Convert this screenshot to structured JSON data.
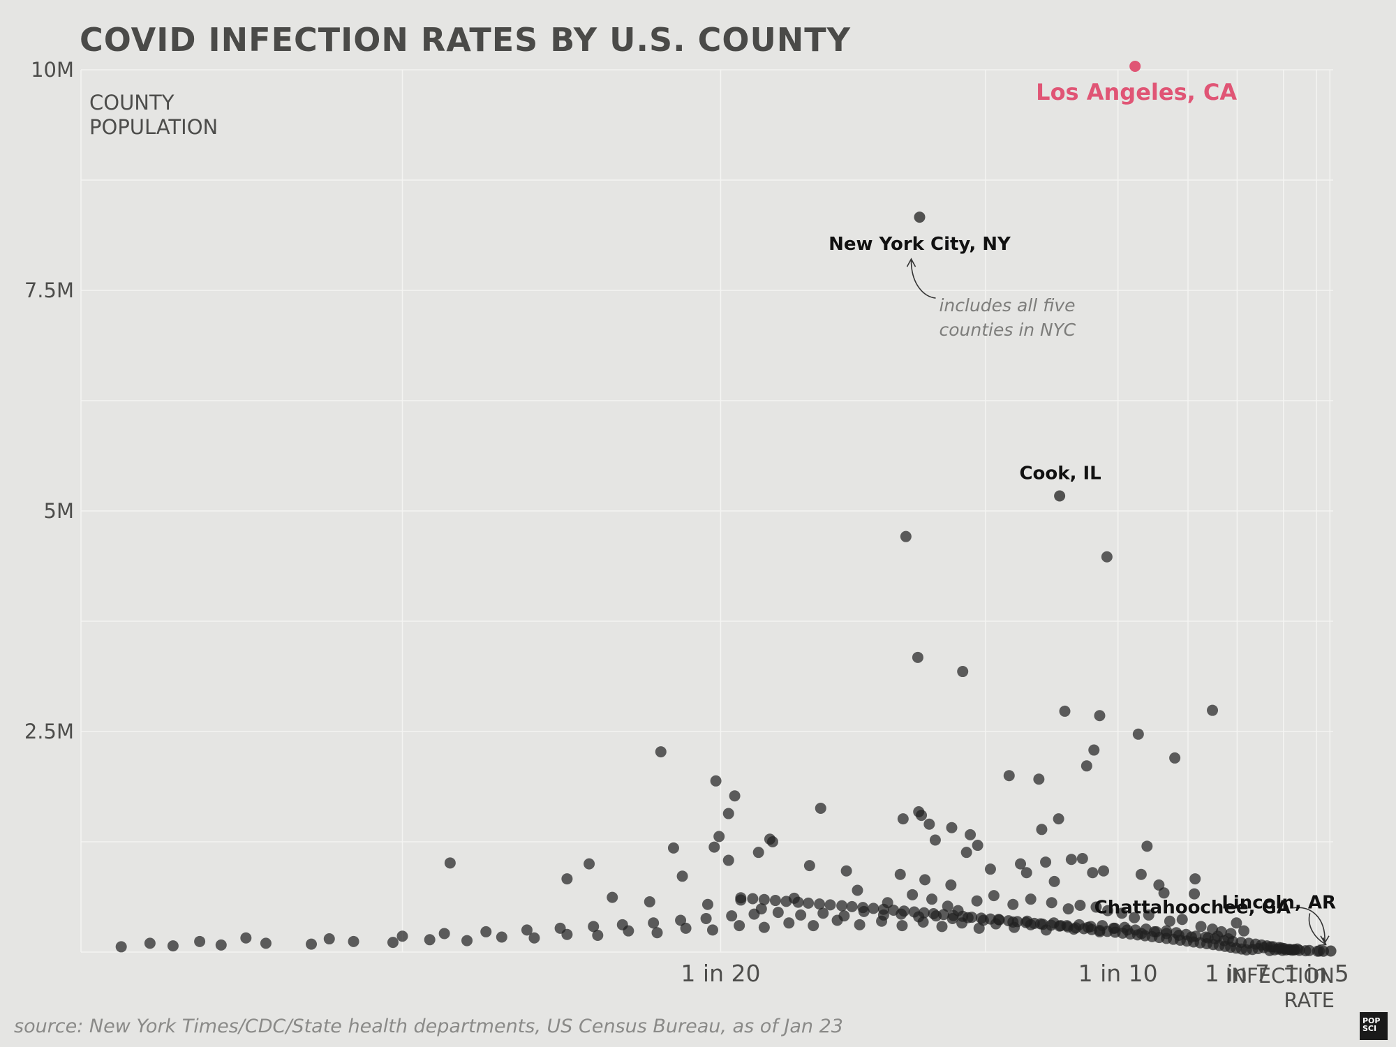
{
  "chart_data": {
    "type": "scatter",
    "title": "COVID INFECTION RATES BY U.S. COUNTY",
    "ylabel_lines": [
      "COUNTY",
      "POPULATION"
    ],
    "xlabel_lines": [
      "INFECTION",
      "RATE"
    ],
    "source": "source: New York Times/CDC/State health departments, US Census Bureau, as of Jan 23",
    "logo_lines": [
      "POP",
      "SCI"
    ],
    "ylim": [
      0,
      10000000
    ],
    "xlim": [
      0.0277,
      0.2182
    ],
    "x_scale": "reciprocal",
    "grid": true,
    "y_ticks": [
      {
        "value": 10000000,
        "label": "10M"
      },
      {
        "value": 7500000,
        "label": "7.5M"
      },
      {
        "value": 5000000,
        "label": "5M"
      },
      {
        "value": 2500000,
        "label": "2.5M"
      }
    ],
    "y_minor_ticks": [
      1250000,
      3750000,
      6250000,
      8750000
    ],
    "x_ticks": [
      {
        "value": 0.05,
        "label": "1 in 20"
      },
      {
        "value": 0.1,
        "label": "1 in 10"
      },
      {
        "value": 0.142857,
        "label": "1 in 7"
      },
      {
        "value": 0.2,
        "label": "1 in 5"
      }
    ],
    "x_minor_ticks": [
      0.0357,
      0.075,
      0.1214,
      0.1714,
      0.2143
    ],
    "colors": {
      "point": "#1f1f1f",
      "highlight": "#e05575",
      "grid": "#f4f4f2",
      "text": "#4d4d4b",
      "annotation": "#7d7d7b"
    },
    "highlighted": [
      {
        "name": "Los Angeles, CA",
        "x": 0.1045,
        "y": 10040000,
        "color": "#e05575"
      }
    ],
    "labeled": [
      {
        "name": "New York City, NY",
        "x": 0.0667,
        "y": 8330000
      },
      {
        "name": "Cook, IL",
        "x": 0.0872,
        "y": 5170000
      },
      {
        "name": "Chattahoochee, GA",
        "x": 0.2071,
        "y": 10000
      },
      {
        "name": "Lincoln, AR",
        "x": 0.2154,
        "y": 12000
      }
    ],
    "annotations": [
      {
        "for": "New York City, NY",
        "lines": [
          "includes all five",
          "counties in NYC"
        ]
      }
    ],
    "points": [
      [
        0.0652,
        4710000
      ],
      [
        0.0973,
        4480000
      ],
      [
        0.0665,
        3340000
      ],
      [
        0.0719,
        3180000
      ],
      [
        0.0882,
        2730000
      ],
      [
        0.0956,
        2680000
      ],
      [
        0.1054,
        2470000
      ],
      [
        0.1312,
        2740000
      ],
      [
        0.1167,
        2200000
      ],
      [
        0.0943,
        2290000
      ],
      [
        0.0927,
        2110000
      ],
      [
        0.0785,
        2000000
      ],
      [
        0.0834,
        1960000
      ],
      [
        0.0465,
        2270000
      ],
      [
        0.0497,
        1940000
      ],
      [
        0.0509,
        1770000
      ],
      [
        0.0505,
        1570000
      ],
      [
        0.0572,
        1630000
      ],
      [
        0.0535,
        1250000
      ],
      [
        0.0499,
        1310000
      ],
      [
        0.0533,
        1280000
      ],
      [
        0.0666,
        1590000
      ],
      [
        0.0669,
        1550000
      ],
      [
        0.0649,
        1510000
      ],
      [
        0.0678,
        1450000
      ],
      [
        0.0705,
        1410000
      ],
      [
        0.0729,
        1330000
      ],
      [
        0.0839,
        1390000
      ],
      [
        0.087,
        1510000
      ],
      [
        0.1079,
        1200000
      ],
      [
        0.0739,
        1210000
      ],
      [
        0.0685,
        1270000
      ],
      [
        0.0525,
        1130000
      ],
      [
        0.0496,
        1190000
      ],
      [
        0.0472,
        1180000
      ],
      [
        0.0429,
        1000000
      ],
      [
        0.0477,
        860000
      ],
      [
        0.0505,
        1040000
      ],
      [
        0.0563,
        980000
      ],
      [
        0.0594,
        920000
      ],
      [
        0.0646,
        880000
      ],
      [
        0.0673,
        820000
      ],
      [
        0.0704,
        760000
      ],
      [
        0.0724,
        1130000
      ],
      [
        0.0757,
        940000
      ],
      [
        0.0803,
        1000000
      ],
      [
        0.0813,
        900000
      ],
      [
        0.0846,
        1020000
      ],
      [
        0.0862,
        800000
      ],
      [
        0.0895,
        1050000
      ],
      [
        0.0918,
        1060000
      ],
      [
        0.094,
        900000
      ],
      [
        0.0965,
        920000
      ],
      [
        0.1062,
        880000
      ],
      [
        0.1131,
        670000
      ],
      [
        0.1115,
        760000
      ],
      [
        0.1238,
        660000
      ],
      [
        0.1241,
        830000
      ],
      [
        0.0373,
        1010000
      ],
      [
        0.0419,
        830000
      ],
      [
        0.044,
        620000
      ],
      [
        0.0459,
        570000
      ],
      [
        0.0492,
        540000
      ],
      [
        0.0513,
        590000
      ],
      [
        0.0527,
        490000
      ],
      [
        0.0551,
        610000
      ],
      [
        0.0604,
        700000
      ],
      [
        0.0633,
        560000
      ],
      [
        0.0659,
        650000
      ],
      [
        0.0681,
        600000
      ],
      [
        0.07,
        520000
      ],
      [
        0.0713,
        470000
      ],
      [
        0.0738,
        580000
      ],
      [
        0.0762,
        640000
      ],
      [
        0.0791,
        540000
      ],
      [
        0.082,
        600000
      ],
      [
        0.0857,
        560000
      ],
      [
        0.0889,
        490000
      ],
      [
        0.0913,
        530000
      ],
      [
        0.0948,
        510000
      ],
      [
        0.0975,
        470000
      ],
      [
        0.101,
        440000
      ],
      [
        0.1043,
        390000
      ],
      [
        0.1084,
        420000
      ],
      [
        0.115,
        350000
      ],
      [
        0.1193,
        370000
      ],
      [
        0.1264,
        290000
      ],
      [
        0.1312,
        260000
      ],
      [
        0.1425,
        330000
      ],
      [
        0.1464,
        240000
      ],
      [
        0.1352,
        230000
      ],
      [
        0.1397,
        210000
      ],
      [
        0.1385,
        150000
      ],
      [
        0.1335,
        180000
      ],
      [
        0.1293,
        160000
      ],
      [
        0.1227,
        170000
      ],
      [
        0.1181,
        190000
      ],
      [
        0.1139,
        210000
      ],
      [
        0.1101,
        230000
      ],
      [
        0.1063,
        210000
      ],
      [
        0.1024,
        250000
      ],
      [
        0.0992,
        270000
      ],
      [
        0.0956,
        230000
      ],
      [
        0.093,
        280000
      ],
      [
        0.09,
        260000
      ],
      [
        0.0874,
        300000
      ],
      [
        0.0847,
        250000
      ],
      [
        0.082,
        310000
      ],
      [
        0.0793,
        280000
      ],
      [
        0.0765,
        320000
      ],
      [
        0.0741,
        270000
      ],
      [
        0.0718,
        330000
      ],
      [
        0.0693,
        290000
      ],
      [
        0.0671,
        340000
      ],
      [
        0.0648,
        300000
      ],
      [
        0.0627,
        350000
      ],
      [
        0.0606,
        310000
      ],
      [
        0.0586,
        360000
      ],
      [
        0.0566,
        300000
      ],
      [
        0.0547,
        330000
      ],
      [
        0.0529,
        280000
      ],
      [
        0.0512,
        300000
      ],
      [
        0.0495,
        250000
      ],
      [
        0.0479,
        270000
      ],
      [
        0.0463,
        220000
      ],
      [
        0.0448,
        240000
      ],
      [
        0.0433,
        190000
      ],
      [
        0.0419,
        200000
      ],
      [
        0.0405,
        160000
      ],
      [
        0.0392,
        170000
      ],
      [
        0.0379,
        130000
      ],
      [
        0.0366,
        140000
      ],
      [
        0.0354,
        110000
      ],
      [
        0.0342,
        120000
      ],
      [
        0.033,
        90000
      ],
      [
        0.0318,
        100000
      ],
      [
        0.0307,
        80000
      ],
      [
        0.0296,
        70000
      ],
      [
        0.0285,
        60000
      ],
      [
        0.0291,
        100000
      ],
      [
        0.0302,
        120000
      ],
      [
        0.0313,
        160000
      ],
      [
        0.0335,
        150000
      ],
      [
        0.0357,
        180000
      ],
      [
        0.0371,
        210000
      ],
      [
        0.0386,
        230000
      ],
      [
        0.0402,
        250000
      ],
      [
        0.0416,
        270000
      ],
      [
        0.0431,
        290000
      ],
      [
        0.0445,
        310000
      ],
      [
        0.0461,
        330000
      ],
      [
        0.0476,
        360000
      ],
      [
        0.0491,
        380000
      ],
      [
        0.0507,
        410000
      ],
      [
        0.0522,
        430000
      ],
      [
        0.0539,
        450000
      ],
      [
        0.0556,
        420000
      ],
      [
        0.0574,
        440000
      ],
      [
        0.0592,
        410000
      ],
      [
        0.061,
        460000
      ],
      [
        0.0629,
        420000
      ],
      [
        0.0647,
        430000
      ],
      [
        0.0666,
        400000
      ],
      [
        0.0686,
        410000
      ],
      [
        0.0706,
        380000
      ],
      [
        0.0726,
        390000
      ],
      [
        0.0747,
        360000
      ],
      [
        0.0769,
        370000
      ],
      [
        0.0791,
        340000
      ],
      [
        0.0814,
        350000
      ],
      [
        0.0837,
        320000
      ],
      [
        0.0861,
        330000
      ],
      [
        0.0886,
        300000
      ],
      [
        0.0911,
        310000
      ],
      [
        0.0936,
        290000
      ],
      [
        0.0962,
        300000
      ],
      [
        0.0989,
        270000
      ],
      [
        0.1017,
        280000
      ],
      [
        0.1046,
        250000
      ],
      [
        0.1076,
        260000
      ],
      [
        0.1107,
        230000
      ],
      [
        0.1139,
        240000
      ],
      [
        0.1172,
        220000
      ],
      [
        0.1207,
        200000
      ],
      [
        0.1244,
        180000
      ],
      [
        0.1283,
        170000
      ],
      [
        0.1323,
        150000
      ],
      [
        0.1364,
        130000
      ],
      [
        0.1406,
        120000
      ],
      [
        0.1449,
        110000
      ],
      [
        0.1491,
        100000
      ],
      [
        0.153,
        90000
      ],
      [
        0.1566,
        80000
      ],
      [
        0.16,
        70000
      ],
      [
        0.164,
        60000
      ],
      [
        0.1683,
        50000
      ],
      [
        0.172,
        40000
      ],
      [
        0.1762,
        30000
      ],
      [
        0.1798,
        25000
      ],
      [
        0.184,
        20000
      ],
      [
        0.1895,
        15000
      ],
      [
        0.1929,
        18000
      ],
      [
        0.201,
        10000
      ],
      [
        0.2028,
        12000
      ],
      [
        0.1706,
        20000
      ],
      [
        0.1733,
        25000
      ],
      [
        0.1755,
        30000
      ],
      [
        0.1779,
        22000
      ],
      [
        0.18,
        28000
      ],
      [
        0.1823,
        35000
      ],
      [
        0.1618,
        18000
      ],
      [
        0.1651,
        26000
      ],
      [
        0.1677,
        34000
      ],
      [
        0.17,
        45000
      ],
      [
        0.1625,
        60000
      ],
      [
        0.158,
        50000
      ],
      [
        0.1545,
        40000
      ],
      [
        0.1512,
        30000
      ],
      [
        0.1478,
        25000
      ],
      [
        0.1452,
        35000
      ],
      [
        0.1423,
        45000
      ],
      [
        0.1396,
        55000
      ],
      [
        0.1369,
        65000
      ],
      [
        0.1342,
        75000
      ],
      [
        0.1315,
        85000
      ],
      [
        0.1288,
        95000
      ],
      [
        0.1261,
        105000
      ],
      [
        0.1235,
        115000
      ],
      [
        0.121,
        125000
      ],
      [
        0.1186,
        135000
      ],
      [
        0.1162,
        145000
      ],
      [
        0.1139,
        155000
      ],
      [
        0.1116,
        165000
      ],
      [
        0.1094,
        175000
      ],
      [
        0.1073,
        185000
      ],
      [
        0.1052,
        195000
      ],
      [
        0.1032,
        205000
      ],
      [
        0.1012,
        215000
      ],
      [
        0.0993,
        225000
      ],
      [
        0.0974,
        235000
      ],
      [
        0.0956,
        245000
      ],
      [
        0.0938,
        255000
      ],
      [
        0.0921,
        265000
      ],
      [
        0.0904,
        275000
      ],
      [
        0.0888,
        285000
      ],
      [
        0.0872,
        295000
      ],
      [
        0.0856,
        305000
      ],
      [
        0.0841,
        315000
      ],
      [
        0.0826,
        325000
      ],
      [
        0.0812,
        335000
      ],
      [
        0.0798,
        345000
      ],
      [
        0.0784,
        355000
      ],
      [
        0.077,
        365000
      ],
      [
        0.0757,
        375000
      ],
      [
        0.0744,
        385000
      ],
      [
        0.0731,
        395000
      ],
      [
        0.0719,
        405000
      ],
      [
        0.0707,
        415000
      ],
      [
        0.0695,
        425000
      ],
      [
        0.0683,
        435000
      ],
      [
        0.0672,
        445000
      ],
      [
        0.0661,
        455000
      ],
      [
        0.065,
        465000
      ],
      [
        0.0639,
        475000
      ],
      [
        0.0629,
        485000
      ],
      [
        0.0619,
        495000
      ],
      [
        0.0609,
        505000
      ],
      [
        0.0599,
        515000
      ],
      [
        0.059,
        525000
      ],
      [
        0.058,
        535000
      ],
      [
        0.0571,
        545000
      ],
      [
        0.0562,
        555000
      ],
      [
        0.0554,
        565000
      ],
      [
        0.0545,
        575000
      ],
      [
        0.0537,
        585000
      ],
      [
        0.0529,
        595000
      ],
      [
        0.0521,
        605000
      ],
      [
        0.0513,
        615000
      ]
    ]
  }
}
